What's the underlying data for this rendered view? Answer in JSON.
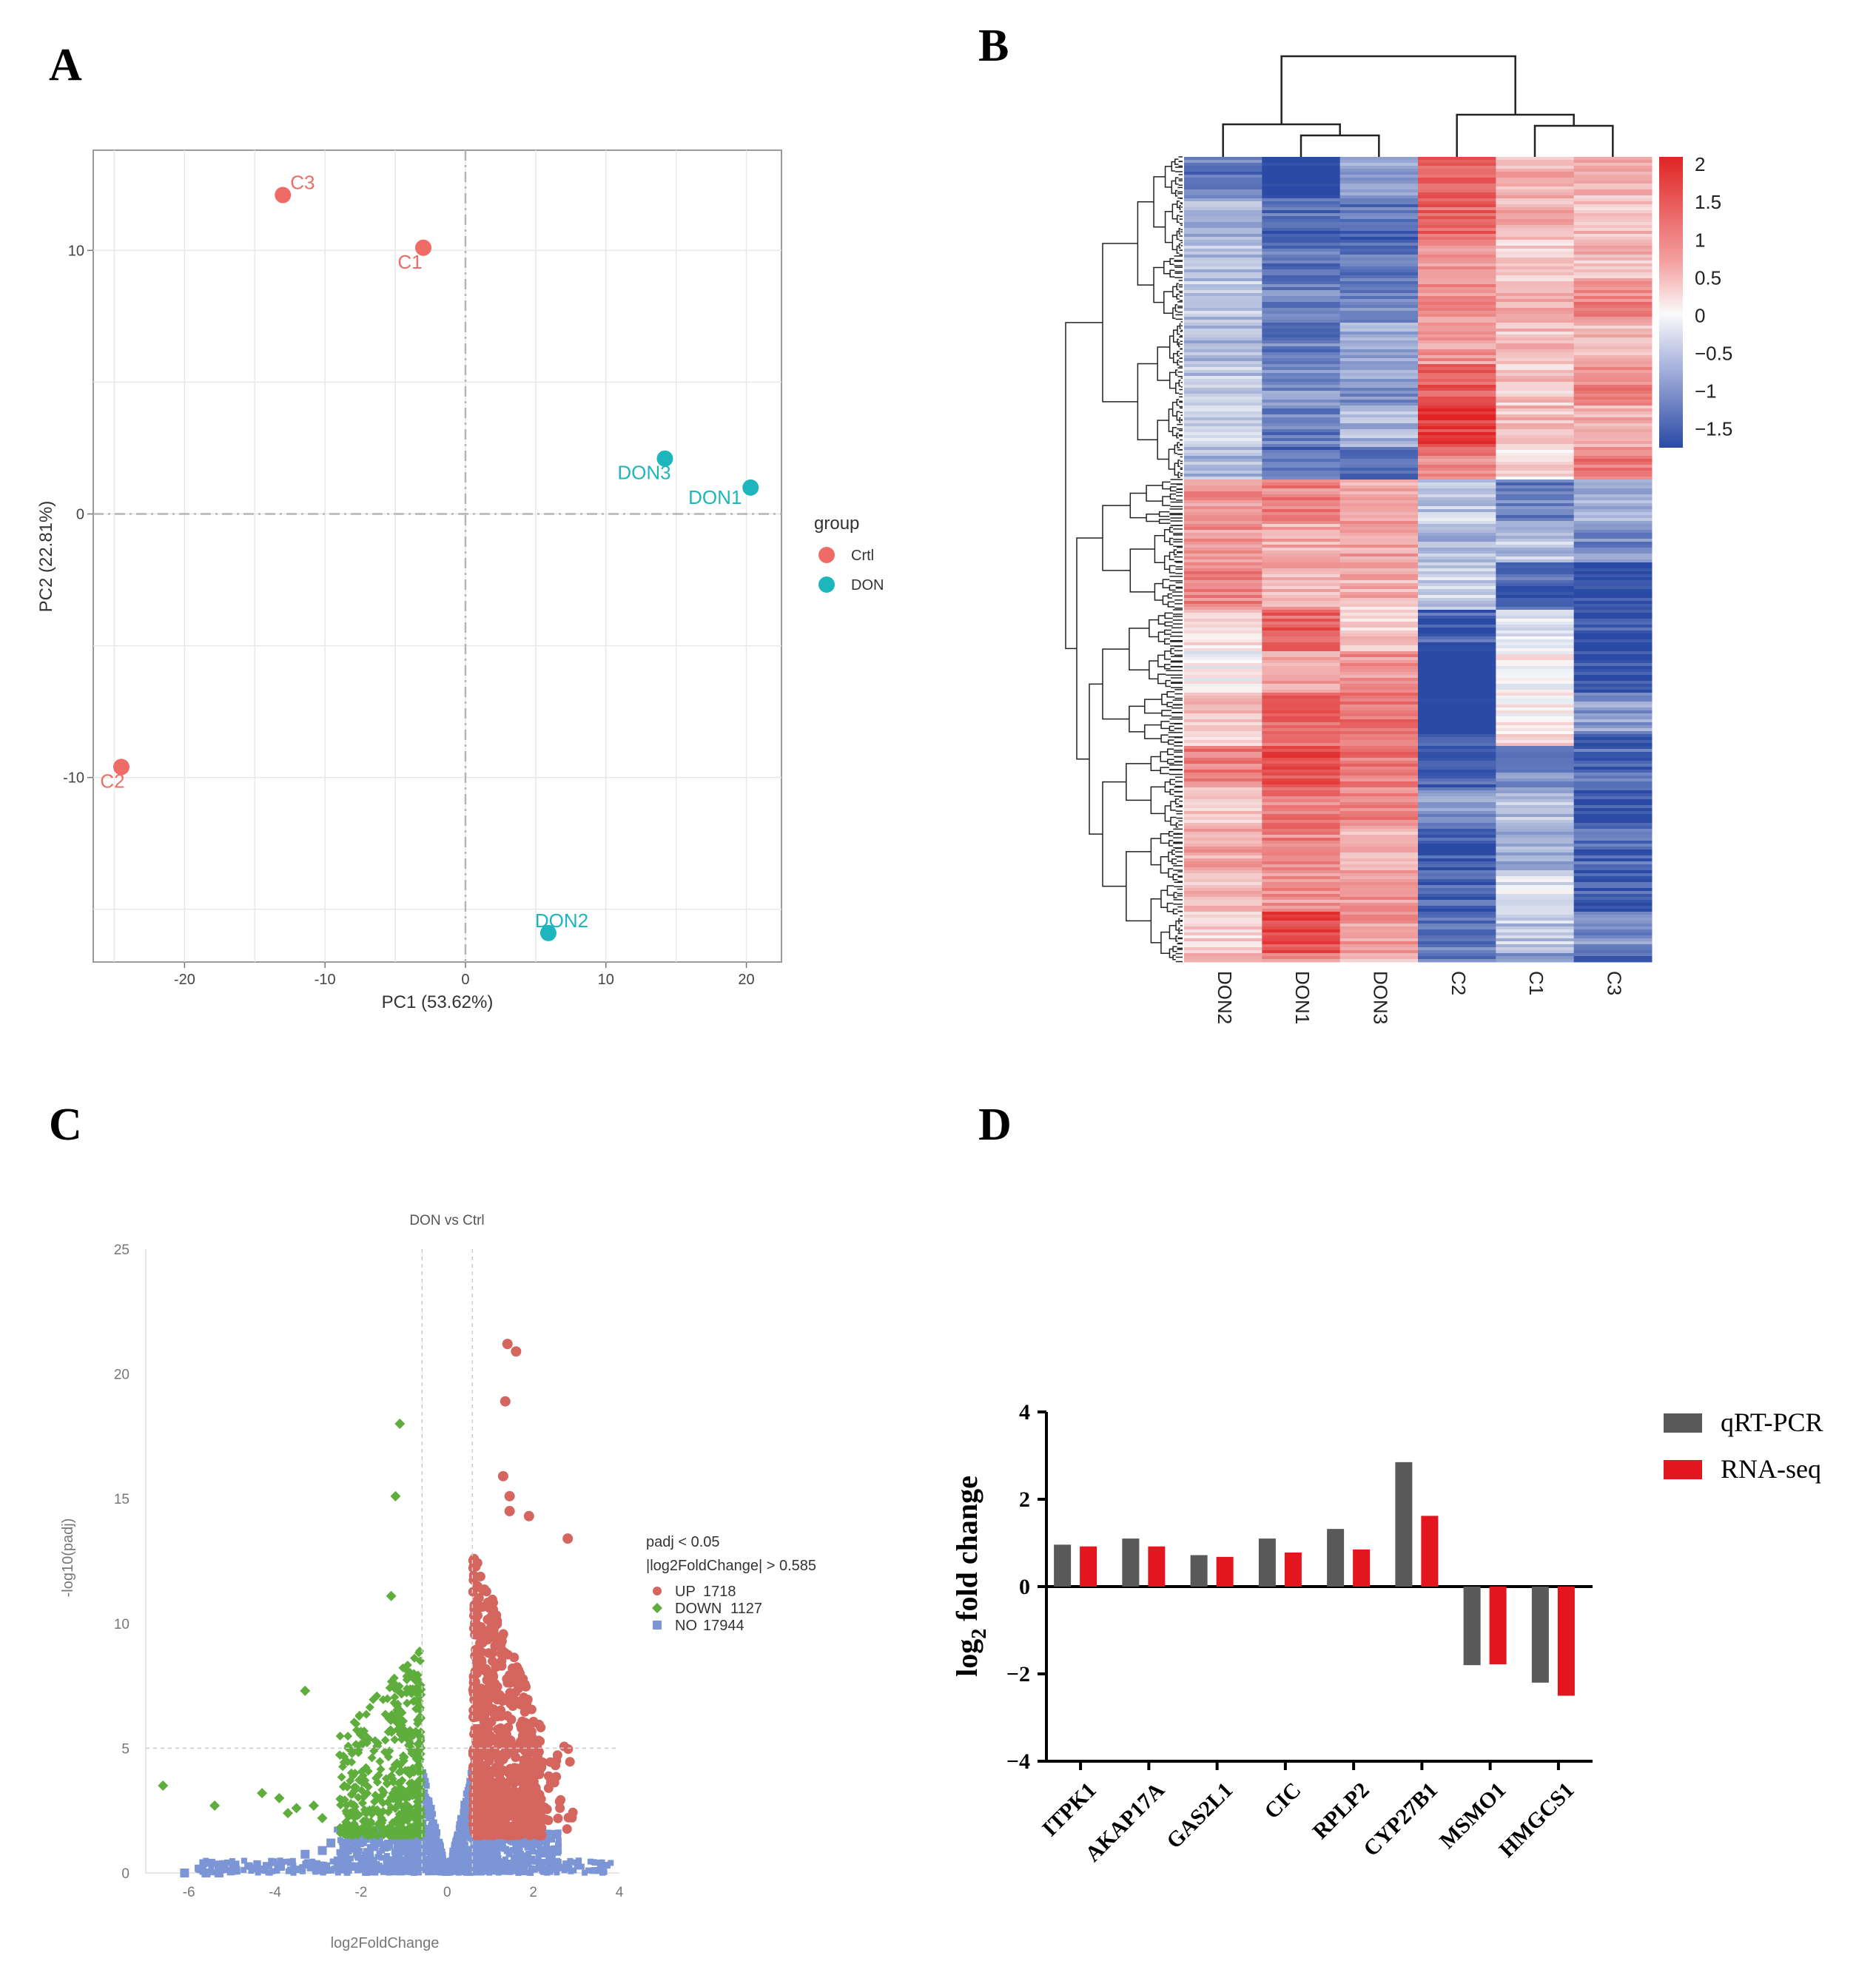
{
  "panels": {
    "a": "A",
    "b": "B",
    "c": "C",
    "d": "D"
  },
  "colors": {
    "crtl": "#ef6c66",
    "don": "#1db6bd",
    "up": "#d4665f",
    "down": "#5fad3d",
    "no": "#7b95d5",
    "heat_high": "#e02424",
    "heat_low": "#2a4aa5",
    "qrt": "#595959",
    "rna": "#e3161f"
  },
  "chart_data": [
    {
      "id": "pca",
      "type": "scatter",
      "title": "",
      "xlabel": "PC1 (53.62%)",
      "ylabel": "PC2 (22.81%)",
      "xlim": [
        -26.5,
        22.5
      ],
      "ylim": [
        -17,
        13.8
      ],
      "xticks": [
        -20,
        -10,
        0,
        10,
        20
      ],
      "yticks": [
        -10,
        0,
        10
      ],
      "grid": true,
      "legend_title": "group",
      "legend_position": "right",
      "series": [
        {
          "name": "Crtl",
          "points": [
            {
              "label": "C3",
              "x": -13,
              "y": 12.1
            },
            {
              "label": "C1",
              "x": -3,
              "y": 10.1
            },
            {
              "label": "C2",
              "x": -24.5,
              "y": -9.6
            }
          ]
        },
        {
          "name": "DON",
          "points": [
            {
              "label": "DON3",
              "x": 14.2,
              "y": 2.1
            },
            {
              "label": "DON1",
              "x": 20.3,
              "y": 1.0
            },
            {
              "label": "DON2",
              "x": 5.9,
              "y": -15.9
            }
          ]
        }
      ]
    },
    {
      "id": "heatmap",
      "type": "heatmap",
      "columns": [
        "DON2",
        "DON1",
        "DON3",
        "C2",
        "C1",
        "C3"
      ],
      "colorbar_ticks": [
        "2",
        "1.5",
        "1",
        "0.5",
        "0",
        "−0.5",
        "−1",
        "−1.5"
      ],
      "colorbar_values": [
        2,
        1.5,
        1,
        0.5,
        0,
        -0.5,
        -1,
        -1.5
      ],
      "vrange": [
        -1.75,
        2.1
      ],
      "cluster_blocks": [
        {
          "fraction": 0.4,
          "means": [
            -0.8,
            -1.5,
            -1.0,
            1.4,
            0.3,
            1.0
          ]
        },
        {
          "fraction": 0.16,
          "means": [
            0.9,
            0.9,
            0.6,
            -0.8,
            -1.0,
            -1.3
          ]
        },
        {
          "fraction": 0.17,
          "means": [
            0.3,
            1.2,
            0.9,
            -1.6,
            -0.1,
            -1.2
          ]
        },
        {
          "fraction": 0.27,
          "means": [
            0.8,
            1.3,
            0.9,
            -1.4,
            -0.6,
            -1.2
          ]
        }
      ]
    },
    {
      "id": "volcano",
      "type": "scatter",
      "title": "DON vs Ctrl",
      "xlabel": "log2FoldChange",
      "ylabel": "-log10(padj)",
      "xlim": [
        -7.0,
        4.0
      ],
      "ylim": [
        0,
        25
      ],
      "xticks": [
        -6,
        -4,
        -2,
        0,
        2,
        4
      ],
      "yticks": [
        0,
        5,
        10,
        15,
        20,
        25
      ],
      "thresholds": {
        "x": [
          -0.585,
          0.585
        ],
        "y": 5
      },
      "legend_lines": [
        "padj < 0.05",
        "|log2FoldChange| > 0.585"
      ],
      "legend_position": "right",
      "series": [
        {
          "name": "UP",
          "count": "1718"
        },
        {
          "name": "DOWN",
          "count": "1127"
        },
        {
          "name": "NO",
          "count": "17944"
        }
      ],
      "highlight_points": {
        "up": [
          [
            1.4,
            21.2
          ],
          [
            1.6,
            20.9
          ],
          [
            1.35,
            18.9
          ],
          [
            1.3,
            15.9
          ],
          [
            1.45,
            15.1
          ],
          [
            2.8,
            13.4
          ],
          [
            1.9,
            14.3
          ],
          [
            1.45,
            14.5
          ]
        ],
        "down": [
          [
            -1.1,
            18.0
          ],
          [
            -1.2,
            15.1
          ],
          [
            -1.3,
            11.1
          ],
          [
            -3.3,
            7.3
          ],
          [
            -6.6,
            3.5
          ],
          [
            -5.4,
            2.7
          ],
          [
            -4.3,
            3.2
          ],
          [
            -3.9,
            3.0
          ],
          [
            -3.5,
            2.6
          ],
          [
            -3.1,
            2.7
          ],
          [
            -2.9,
            2.2
          ],
          [
            -3.7,
            2.4
          ]
        ],
        "no": [
          [
            -6.1,
            0.0
          ],
          [
            -5.6,
            0.0
          ],
          [
            -5.3,
            0.0
          ],
          [
            -3.3,
            0.75
          ],
          [
            -2.9,
            0.9
          ],
          [
            -2.7,
            1.2
          ],
          [
            -2.4,
            1.0
          ]
        ]
      }
    },
    {
      "id": "bars",
      "type": "bar",
      "title": "",
      "xlabel": "",
      "ylabel": "log2 fold change",
      "ylabel_main": "log",
      "ylabel_sub": "2",
      "ylabel_rest": " fold change",
      "ylim": [
        -4,
        4
      ],
      "yticks": [
        4,
        2,
        0,
        -2,
        -4
      ],
      "categories": [
        "ITPK1",
        "AKAP17A",
        "GAS2L1",
        "CIC",
        "RPLP2",
        "CYP27B1",
        "MSMO1",
        "HMGCS1"
      ],
      "series": [
        {
          "name": "qRT-PCR",
          "values": [
            0.96,
            1.1,
            0.72,
            1.1,
            1.32,
            2.85,
            -1.8,
            -2.2
          ]
        },
        {
          "name": "RNA-seq",
          "values": [
            0.92,
            0.92,
            0.68,
            0.78,
            0.85,
            1.62,
            -1.78,
            -2.5
          ]
        }
      ],
      "legend_position": "top-right"
    }
  ]
}
